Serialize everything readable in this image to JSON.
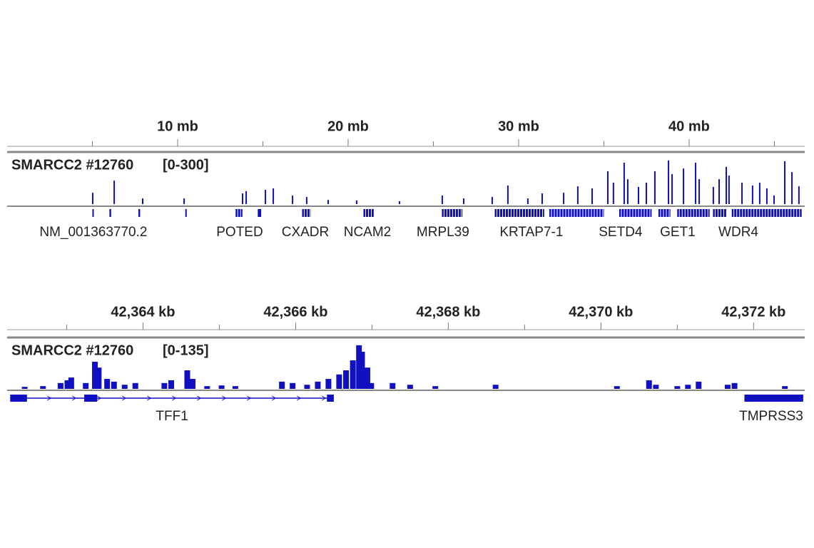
{
  "chart_data": [
    {
      "type": "bar",
      "track_name": "SMARCC2 #12760",
      "range_label": "[0-300]",
      "color": "#1010c0",
      "xlim": [
        0,
        46.78
      ],
      "ylim": [
        0,
        300
      ],
      "xticks": [
        {
          "value": 10,
          "label": "10 mb"
        },
        {
          "value": 20,
          "label": "20 mb"
        },
        {
          "value": 30,
          "label": "30 mb"
        },
        {
          "value": 40,
          "label": "40 mb"
        }
      ],
      "minor_xticks": [
        5,
        15,
        25,
        35,
        45
      ],
      "x": [
        5.02,
        6.28,
        7.95,
        10.38,
        13.81,
        14.02,
        15.15,
        15.61,
        16.74,
        17.57,
        18.83,
        20.5,
        23.01,
        25.52,
        26.78,
        28.45,
        29.37,
        30.54,
        31.38,
        32.64,
        33.47,
        34.31,
        35.23,
        35.56,
        36.19,
        36.4,
        37.03,
        37.49,
        37.99,
        38.79,
        39.0,
        39.67,
        40.38,
        40.59,
        41.42,
        41.76,
        42.18,
        42.34,
        43.1,
        43.72,
        44.14,
        44.56,
        44.98,
        45.61,
        46.03,
        46.44
      ],
      "values": [
        70,
        145,
        35,
        35,
        66,
        80,
        88,
        97,
        53,
        44,
        26,
        22,
        18,
        53,
        35,
        44,
        115,
        35,
        66,
        70,
        110,
        97,
        203,
        132,
        256,
        154,
        106,
        132,
        203,
        270,
        185,
        220,
        256,
        154,
        106,
        154,
        230,
        176,
        132,
        115,
        132,
        97,
        53,
        265,
        198,
        110
      ],
      "features": [
        [
          5.0,
          5.06
        ],
        [
          6.0,
          6.1
        ],
        [
          7.7,
          7.8
        ],
        [
          10.45,
          10.5
        ],
        [
          13.4,
          13.8
        ],
        [
          14.7,
          14.9
        ],
        [
          17.3,
          17.8
        ],
        [
          20.9,
          21.5
        ],
        [
          25.5,
          26.7
        ],
        [
          28.6,
          31.5
        ],
        [
          31.8,
          35.0
        ],
        [
          35.9,
          37.8
        ],
        [
          38.2,
          38.9
        ],
        [
          39.3,
          41.2
        ],
        [
          41.4,
          42.2
        ],
        [
          42.5,
          46.6
        ]
      ],
      "gene_labels": [
        {
          "name": "NM_001363770.2",
          "at": 5.06
        },
        {
          "name": "POTED",
          "at": 13.64
        },
        {
          "name": "CXADR",
          "at": 17.49
        },
        {
          "name": "NCAM2",
          "at": 21.13
        },
        {
          "name": "MRPL39",
          "at": 25.56
        },
        {
          "name": "KRTAP7-1",
          "at": 30.75
        },
        {
          "name": "SETD4",
          "at": 35.98
        },
        {
          "name": "GET1",
          "at": 39.33
        },
        {
          "name": "WDR4",
          "at": 42.89
        }
      ]
    },
    {
      "type": "bar",
      "track_name": "SMARCC2 #12760",
      "range_label": "[0-135]",
      "color": "#1010c0",
      "xlim": [
        42362.22,
        42372.67
      ],
      "ylim": [
        0,
        135
      ],
      "xticks": [
        {
          "value": 42364,
          "label": "42,364 kb"
        },
        {
          "value": 42366,
          "label": "42,366 kb"
        },
        {
          "value": 42368,
          "label": "42,368 kb"
        },
        {
          "value": 42370,
          "label": "42,370 kb"
        },
        {
          "value": 42372,
          "label": "42,372 kb"
        }
      ],
      "minor_xticks": [
        42363,
        42365,
        42367,
        42369,
        42371
      ],
      "x": [
        42362.45,
        42362.69,
        42362.92,
        42363.01,
        42363.06,
        42363.25,
        42363.37,
        42363.42,
        42363.53,
        42363.62,
        42363.76,
        42363.9,
        42364.28,
        42364.37,
        42364.58,
        42364.65,
        42364.84,
        42365.03,
        42365.21,
        42365.82,
        42365.96,
        42366.15,
        42366.29,
        42366.43,
        42366.57,
        42366.66,
        42366.75,
        42366.83,
        42366.87,
        42366.94,
        42366.99,
        42367.27,
        42367.5,
        42367.83,
        42368.62,
        42370.21,
        42370.63,
        42370.72,
        42371.0,
        42371.14,
        42371.28,
        42371.66,
        42371.75,
        42372.41
      ],
      "values": [
        6,
        8,
        17,
        25,
        33,
        17,
        79,
        62,
        29,
        21,
        12,
        17,
        17,
        25,
        54,
        29,
        8,
        10,
        8,
        21,
        17,
        12,
        21,
        29,
        42,
        54,
        83,
        127,
        108,
        62,
        17,
        17,
        12,
        8,
        12,
        8,
        25,
        12,
        8,
        12,
        21,
        12,
        17,
        8
      ],
      "genes": [
        {
          "name": "TFF1",
          "start": 42362.26,
          "end": 42366.5,
          "exons": [
            [
              42362.26,
              42362.48
            ],
            [
              42363.23,
              42363.4
            ],
            [
              42366.41,
              42366.5
            ]
          ]
        },
        {
          "name": "TMPRSS3",
          "start": 42371.88,
          "end": 42372.65,
          "exons": [
            [
              42371.88,
              42372.65
            ]
          ]
        }
      ]
    }
  ]
}
